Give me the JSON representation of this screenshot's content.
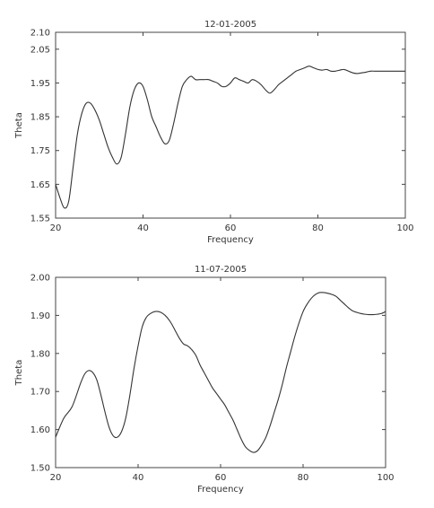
{
  "chart_data": [
    {
      "type": "line",
      "title": "12-01-2005",
      "xlabel": "Frequency",
      "ylabel": "Theta",
      "xlim": [
        20,
        100
      ],
      "ylim": [
        1.55,
        2.1
      ],
      "xticks": [
        20,
        40,
        60,
        80,
        100
      ],
      "xtick_labels": [
        "20",
        "40",
        "60",
        "80",
        "100"
      ],
      "yticks": [
        1.55,
        1.65,
        1.75,
        1.85,
        1.95,
        2.05,
        2.1
      ],
      "ytick_labels": [
        "1.55",
        "1.65",
        "1.75",
        "1.85",
        "1.95",
        "2.05",
        "2.10"
      ],
      "grid": false,
      "series": [
        {
          "x": [
            20,
            21,
            22,
            23,
            24,
            25,
            26,
            27,
            28,
            29,
            30,
            31,
            32,
            33,
            34,
            35,
            36,
            37,
            38,
            39,
            40,
            41,
            42,
            43,
            44,
            45,
            46,
            47,
            48,
            49,
            50,
            51,
            52,
            53,
            54,
            55,
            56,
            57,
            58,
            59,
            60,
            61,
            62,
            63,
            64,
            65,
            66,
            67,
            68,
            69,
            70,
            71,
            72,
            73,
            74,
            75,
            76,
            77,
            78,
            79,
            80,
            81,
            82,
            83,
            84,
            85,
            86,
            87,
            88,
            89,
            90,
            91,
            92,
            93,
            94,
            95,
            96,
            97,
            98,
            99,
            100
          ],
          "y": [
            1.65,
            1.61,
            1.58,
            1.6,
            1.7,
            1.8,
            1.86,
            1.89,
            1.89,
            1.87,
            1.84,
            1.8,
            1.76,
            1.73,
            1.71,
            1.73,
            1.8,
            1.88,
            1.93,
            1.95,
            1.94,
            1.9,
            1.85,
            1.82,
            1.79,
            1.77,
            1.78,
            1.83,
            1.89,
            1.94,
            1.96,
            1.97,
            1.96,
            1.96,
            1.96,
            1.96,
            1.955,
            1.95,
            1.94,
            1.94,
            1.95,
            1.965,
            1.96,
            1.955,
            1.95,
            1.96,
            1.955,
            1.945,
            1.93,
            1.92,
            1.93,
            1.945,
            1.955,
            1.965,
            1.975,
            1.985,
            1.99,
            1.995,
            2.0,
            1.995,
            1.99,
            1.988,
            1.99,
            1.985,
            1.985,
            1.988,
            1.99,
            1.985,
            1.98,
            1.978,
            1.98,
            1.982,
            1.985,
            1.985,
            1.985,
            1.985,
            1.985,
            1.985,
            1.985,
            1.985,
            1.985
          ]
        }
      ]
    },
    {
      "type": "line",
      "title": "11-07-2005",
      "xlabel": "Frequency",
      "ylabel": "Theta",
      "xlim": [
        20,
        100
      ],
      "ylim": [
        1.5,
        2.0
      ],
      "xticks": [
        20,
        40,
        60,
        80,
        100
      ],
      "xtick_labels": [
        "20",
        "40",
        "60",
        "80",
        "100"
      ],
      "yticks": [
        1.5,
        1.6,
        1.7,
        1.8,
        1.9,
        2.0
      ],
      "ytick_labels": [
        "1.50",
        "1.60",
        "1.70",
        "1.80",
        "1.90",
        "2.00"
      ],
      "grid": false,
      "series": [
        {
          "x": [
            20,
            22,
            24,
            26,
            27,
            28,
            29,
            30,
            31,
            32,
            33,
            34,
            35,
            36,
            37,
            38,
            39,
            40,
            41,
            42,
            43,
            44,
            45,
            46,
            47,
            48,
            49,
            50,
            51,
            52,
            53,
            54,
            55,
            56,
            57,
            58,
            59,
            60,
            61,
            62,
            63,
            64,
            65,
            66,
            67,
            68,
            69,
            70,
            71,
            72,
            73,
            74,
            75,
            76,
            77,
            78,
            79,
            80,
            81,
            82,
            83,
            84,
            85,
            86,
            87,
            88,
            89,
            90,
            91,
            92,
            93,
            94,
            95,
            96,
            97,
            98,
            99,
            100
          ],
          "y": [
            1.58,
            1.63,
            1.66,
            1.72,
            1.745,
            1.755,
            1.75,
            1.73,
            1.69,
            1.645,
            1.605,
            1.583,
            1.58,
            1.595,
            1.63,
            1.69,
            1.76,
            1.82,
            1.87,
            1.895,
            1.905,
            1.91,
            1.91,
            1.905,
            1.895,
            1.88,
            1.86,
            1.84,
            1.825,
            1.82,
            1.81,
            1.795,
            1.77,
            1.75,
            1.73,
            1.71,
            1.695,
            1.68,
            1.665,
            1.645,
            1.625,
            1.6,
            1.575,
            1.555,
            1.545,
            1.54,
            1.545,
            1.56,
            1.58,
            1.61,
            1.645,
            1.68,
            1.72,
            1.765,
            1.805,
            1.845,
            1.88,
            1.91,
            1.93,
            1.945,
            1.955,
            1.96,
            1.96,
            1.958,
            1.955,
            1.95,
            1.94,
            1.93,
            1.92,
            1.912,
            1.908,
            1.905,
            1.903,
            1.902,
            1.902,
            1.903,
            1.905,
            1.91
          ]
        }
      ]
    }
  ]
}
